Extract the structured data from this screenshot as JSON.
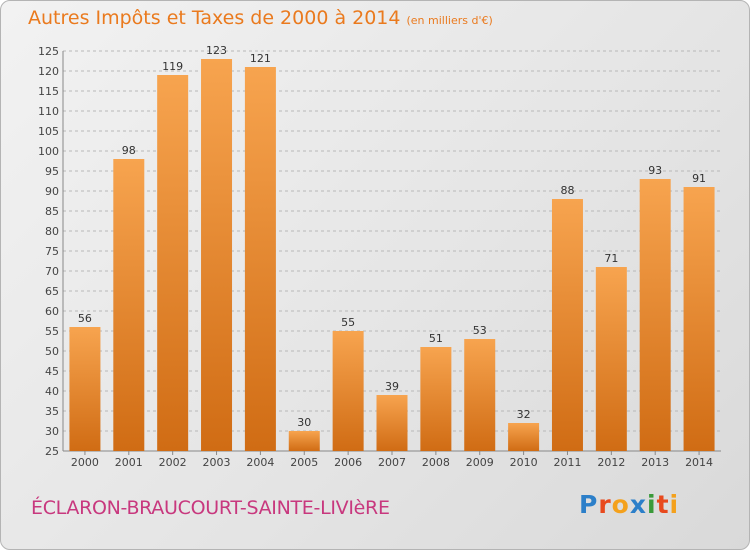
{
  "header": {
    "title": "Autres Impôts et Taxes de 2000 à 2014",
    "unit": "(en milliers d'€)"
  },
  "footer": {
    "commune": "ÉCLARON-BRAUCOURT-SAINTE-LIVIèRE",
    "logo": "Proxiti"
  },
  "colors": {
    "bar_light": "#f7a44f",
    "bar_dark": "#d06c14",
    "title": "#ea7a1e",
    "commune": "#c8387e",
    "grid": "#b8b8b8"
  },
  "chart_data": {
    "type": "bar",
    "categories": [
      "2000",
      "2001",
      "2002",
      "2003",
      "2004",
      "2005",
      "2006",
      "2007",
      "2008",
      "2009",
      "2010",
      "2011",
      "2012",
      "2013",
      "2014"
    ],
    "values": [
      56,
      98,
      119,
      123,
      121,
      30,
      55,
      39,
      51,
      53,
      32,
      88,
      71,
      93,
      91
    ],
    "ylim": [
      25,
      125
    ],
    "yticks": [
      25,
      30,
      35,
      40,
      45,
      50,
      55,
      60,
      65,
      70,
      75,
      80,
      85,
      90,
      95,
      100,
      105,
      110,
      115,
      120,
      125
    ],
    "grid": true,
    "legend": "none"
  }
}
